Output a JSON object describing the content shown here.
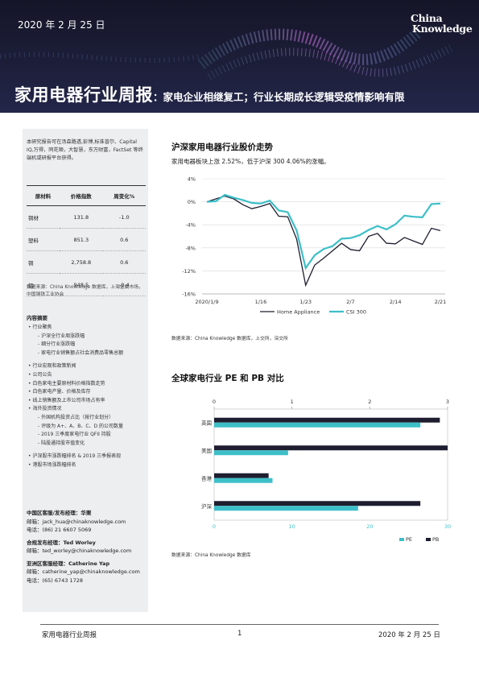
{
  "header": {
    "date": "2020 年 2 月 25 日",
    "logo_line1": "China",
    "logo_line2": "Knowledge",
    "title_main": "家用电器行业周报",
    "title_sub": "：家电企业相继复工；行业长期成长逻辑受疫情影响有限"
  },
  "sidebar": {
    "intro": "本研究报告可在汤森路透,彭博,标准普尔、Capital IQ,万得，同花顺，大智慧，东方财富，FactSet 等终端机或研报平台获得。",
    "table": {
      "headers": [
        "原材料",
        "价格指数",
        "周变化%"
      ],
      "rows": [
        [
          "铜材",
          "131.8",
          "-1.0"
        ],
        [
          "塑料",
          "851.3",
          "0.6"
        ],
        [
          "铜",
          "2,758.8",
          "0.6"
        ],
        [
          "铝",
          "948.5",
          "-0.4"
        ]
      ]
    },
    "source": "数据来源：China Knowledge 数据库，上海金属市场，中国钢铁工业协会",
    "toc_title": "内容摘要",
    "toc": [
      {
        "level": 1,
        "text": "行业聚焦"
      },
      {
        "level": 2,
        "text": "沪深全行业周涨跌幅"
      },
      {
        "level": 2,
        "text": "细分行业涨跌幅"
      },
      {
        "level": 2,
        "text": "家电行业销售额占社会消费品零售总额"
      },
      {
        "level": 0,
        "text": ""
      },
      {
        "level": 1,
        "text": "行业宏观和政策新闻"
      },
      {
        "level": 1,
        "text": "公司公告"
      },
      {
        "level": 1,
        "text": "白色家电主要原材料价格指数走势"
      },
      {
        "level": 1,
        "text": "白色家电产量、价格及库存"
      },
      {
        "level": 1,
        "text": "线上销售额及上市公司市场占有率"
      },
      {
        "level": 1,
        "text": "海外投资情况"
      },
      {
        "level": 2,
        "text": "外国机构投资占比（按行业划分）"
      },
      {
        "level": 2,
        "text": "评级为 A+、A、B、C、D 的公司数量"
      },
      {
        "level": 2,
        "text": "2019 三季度家电行业 QFII 持股"
      },
      {
        "level": 2,
        "text": "陆股通持股市值变化"
      },
      {
        "level": 0,
        "text": ""
      },
      {
        "level": 1,
        "text": "沪深股市涨跌幅排名 & 2019 三季报表现"
      },
      {
        "level": 1,
        "text": "港股市场涨跌幅排名"
      }
    ],
    "contacts": [
      {
        "head": "中国区客服/发布经理：华栗",
        "lines": [
          "邮箱：jack_hua@chinaknowledge.com",
          "电话：(86) 21 6607 5069"
        ]
      },
      {
        "head": "合规发布经理：Ted Worley",
        "lines": [
          "邮箱：ted_worley@chinaknowledge.com"
        ]
      },
      {
        "head": "亚洲区客服经理：Catherine Yap",
        "lines": [
          "邮箱：catherine_yap@chinaknowledge.com",
          "电话：(65) 6743 1728"
        ]
      }
    ]
  },
  "section1": {
    "title": "沪深家用电器行业股价走势",
    "subtitle": "家用电器板块上涨 2.52%，低于沪深 300 4.06%的涨幅。",
    "source": "数据来源：China Knowledge 数据库，上交所，深交所"
  },
  "section2": {
    "title": "全球家电行业 PE 和 PB 对比",
    "source": "数据来源：China Knowledge 数据库"
  },
  "footer": {
    "left": "家用电器行业周报",
    "page": "1",
    "right": "2020 年 2 月 25 日"
  },
  "colors": {
    "navy": "#1e1e30",
    "teal": "#3dbfc8"
  },
  "chart_data": [
    {
      "type": "line",
      "x_ticks": [
        "2020/1/9",
        "1/16",
        "1/23",
        "2/7",
        "2/14",
        "2/21"
      ],
      "y_ticks": [
        "4%",
        "0%",
        "-4%",
        "-8%",
        "-12%",
        "-16%"
      ],
      "ylim": [
        -16,
        4
      ],
      "grid": true,
      "legend_position": "bottom",
      "series": [
        {
          "name": "Home Appliance",
          "color": "#1e1e30",
          "values": [
            0,
            0.5,
            1.0,
            0.5,
            -0.5,
            -1.2,
            -0.8,
            -0.3,
            -2.5,
            -2.6,
            -6.5,
            -14.5,
            -11,
            -9.8,
            -8.5,
            -7.2,
            -8.3,
            -8.5,
            -6,
            -5.5,
            -7.2,
            -7.3,
            -6.2,
            -6.8,
            -7.4,
            -4.6,
            -5.0
          ]
        },
        {
          "name": "CSI 300",
          "color": "#3dbfc8",
          "values": [
            0,
            0.1,
            1.2,
            0.7,
            0.3,
            -0.2,
            -0.3,
            0.2,
            -1.5,
            -1.8,
            -5,
            -11.5,
            -9.3,
            -8.2,
            -7.7,
            -6.4,
            -6.3,
            -5.8,
            -4.9,
            -4.2,
            -4.8,
            -3.9,
            -2.4,
            -2.6,
            -2.7,
            -0.4,
            -0.3
          ]
        }
      ]
    },
    {
      "type": "bar",
      "orientation": "horizontal",
      "categories": [
        "英国",
        "美国",
        "香港",
        "沪深"
      ],
      "top_axis": {
        "label": "PB",
        "ticks": [
          "0",
          "1",
          "2",
          "3"
        ],
        "lim": [
          0,
          3
        ]
      },
      "bottom_axis": {
        "label": "PE",
        "ticks": [
          "0",
          "10",
          "20",
          "30"
        ],
        "lim": [
          0,
          30
        ]
      },
      "legend_position": "bottom-right",
      "series": [
        {
          "name": "PE",
          "color": "#3dbfc8",
          "axis": "bottom",
          "values": [
            26.5,
            9.5,
            7.5,
            18.5
          ]
        },
        {
          "name": "PB",
          "color": "#1e1e30",
          "axis": "top",
          "values": [
            2.9,
            3.0,
            0.7,
            2.65
          ]
        }
      ]
    }
  ]
}
